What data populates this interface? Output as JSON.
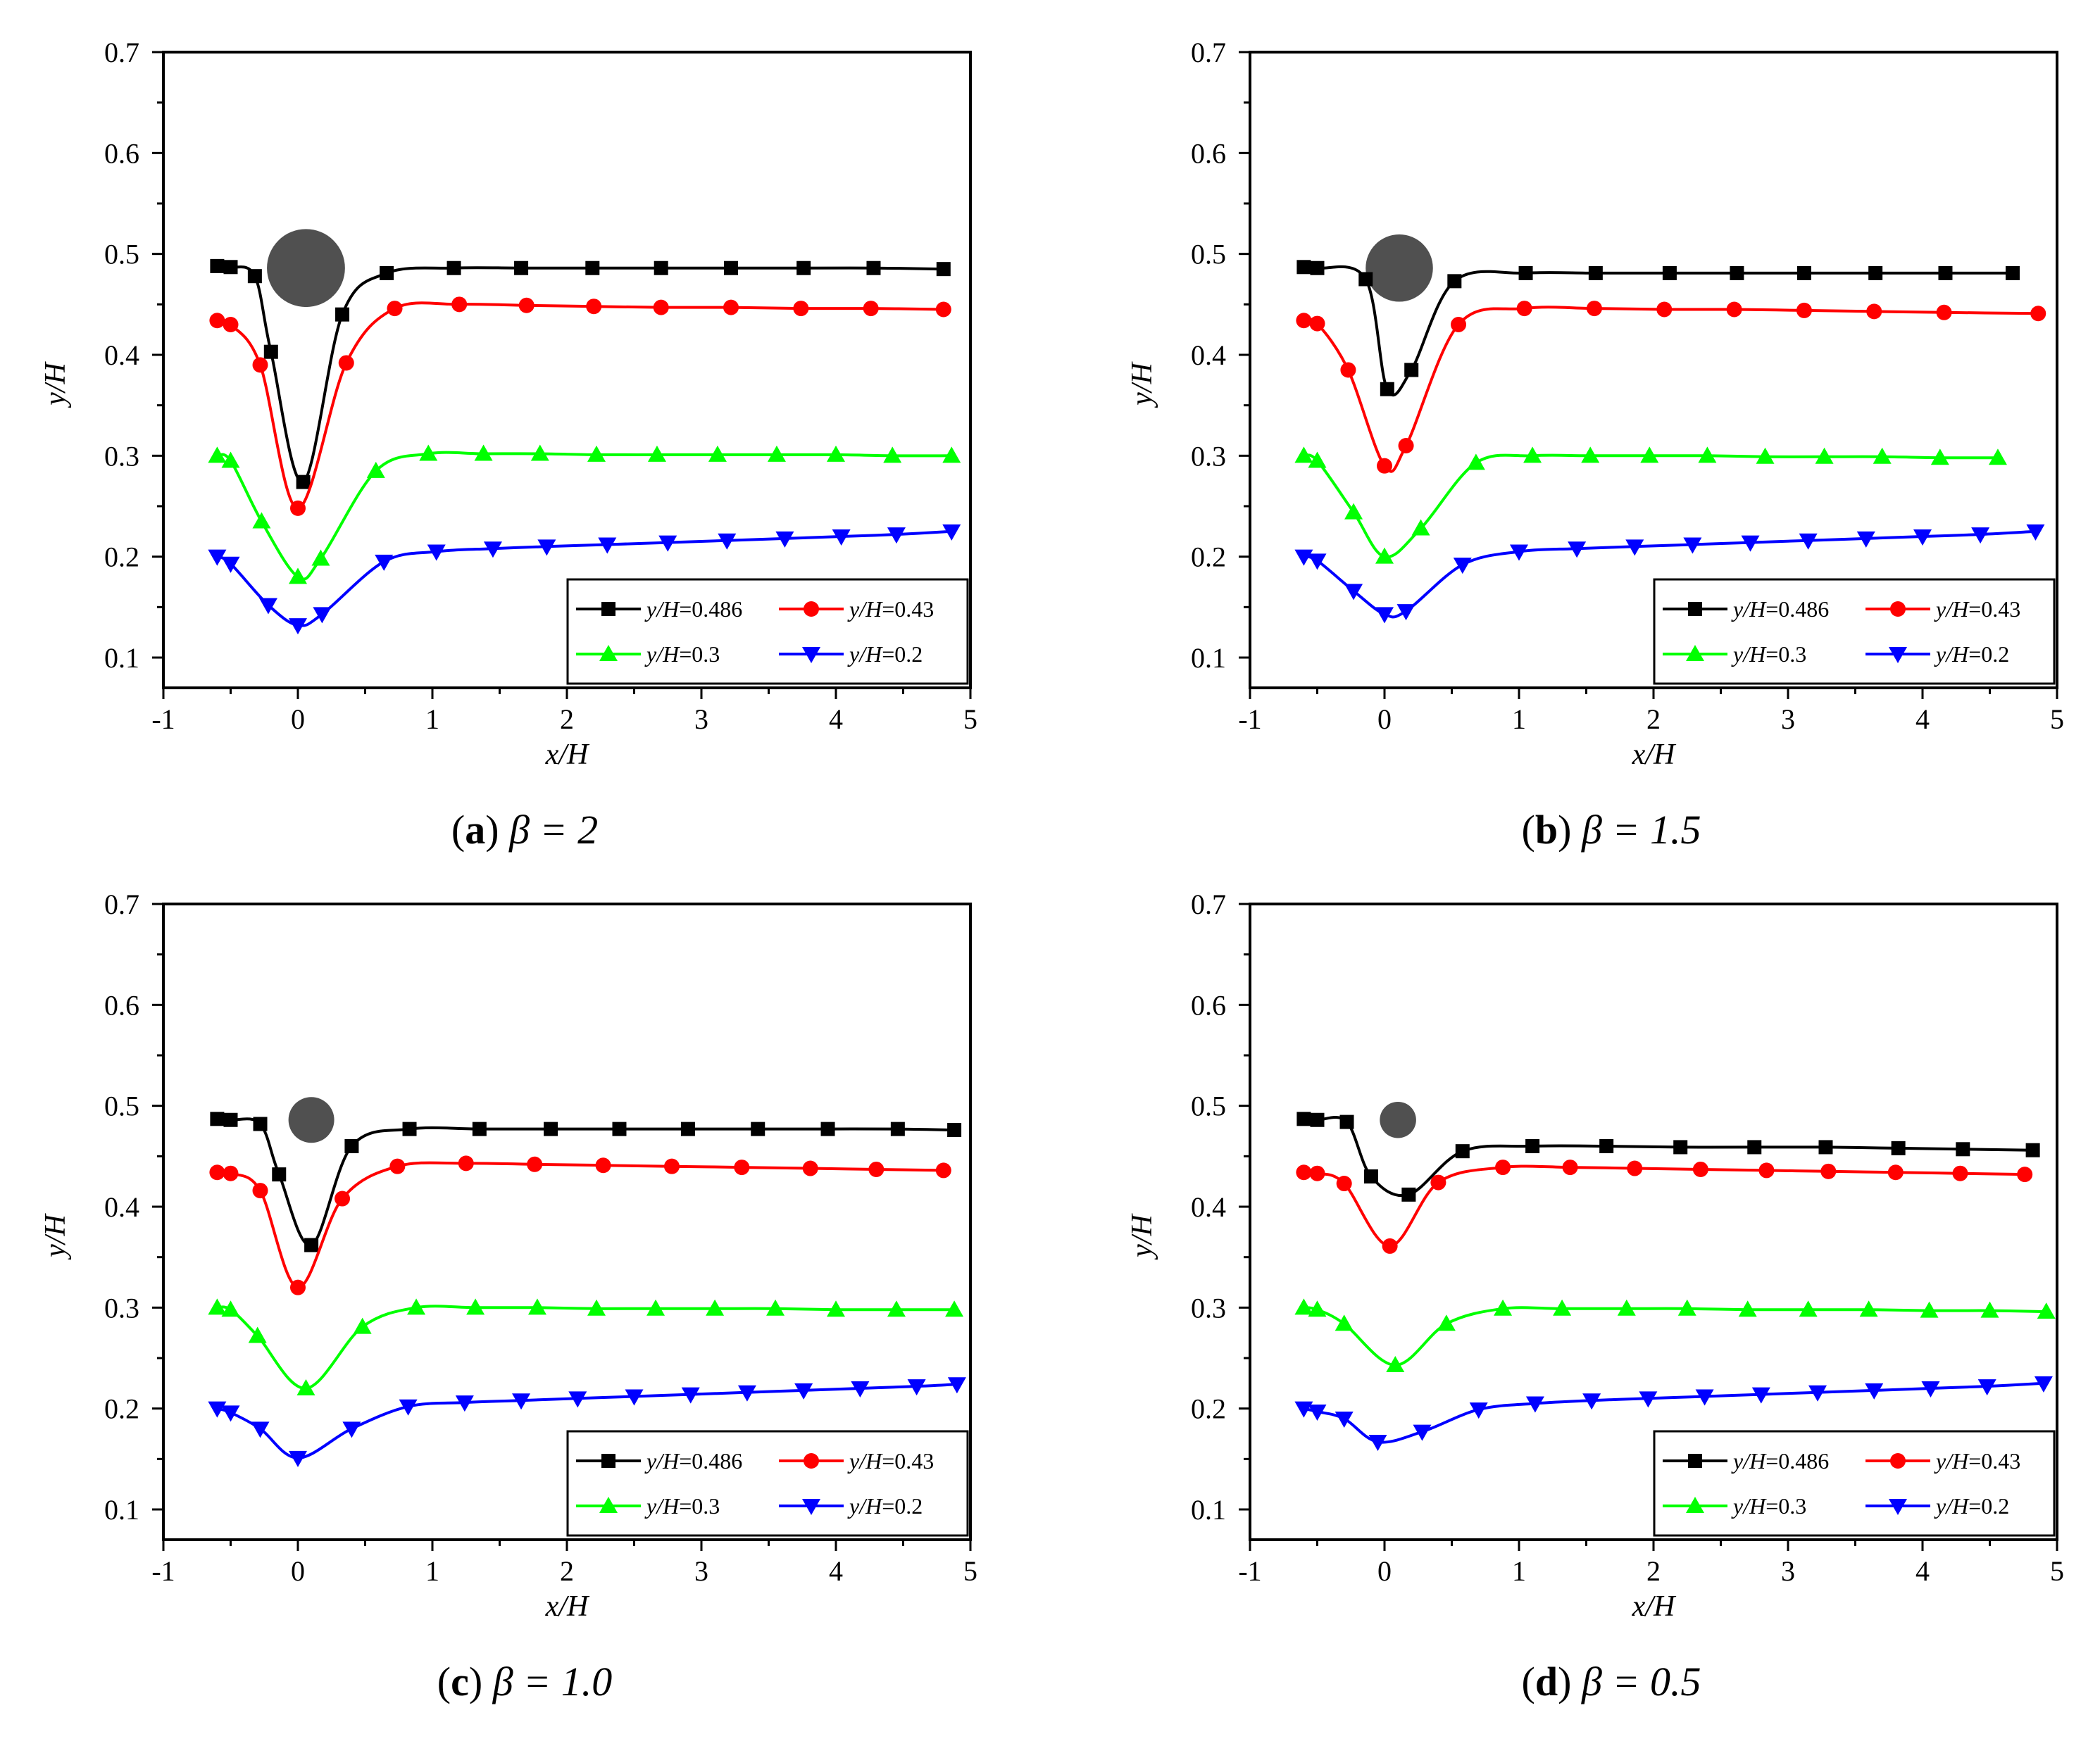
{
  "chart_data": [
    {
      "type": "line",
      "panel": "a",
      "caption": {
        "letter": "a",
        "text": "β = 2"
      },
      "xlabel": "x/H",
      "ylabel": "y/H",
      "xlim": [
        -1,
        5
      ],
      "ylim": [
        0.07,
        0.7
      ],
      "xticks": [
        "-1",
        "0",
        "1",
        "2",
        "3",
        "4",
        "5"
      ],
      "yticks": [
        "0.1",
        "0.2",
        "0.3",
        "0.4",
        "0.5",
        "0.6",
        "0.7"
      ],
      "cylinder": {
        "x": 0.06,
        "y": 0.486,
        "diameter_xH": 0.58
      },
      "series": [
        {
          "name": "y/H=0.486",
          "label_var": "y/H",
          "label_val": "=0.486",
          "color": "#000000",
          "marker": "square",
          "x": [
            -0.6,
            -0.5,
            -0.32,
            -0.2,
            0.04,
            0.33,
            0.66,
            1.16,
            1.66,
            2.19,
            2.7,
            3.22,
            3.76,
            4.28,
            4.8
          ],
          "y": [
            0.488,
            0.487,
            0.478,
            0.403,
            0.274,
            0.44,
            0.481,
            0.486,
            0.486,
            0.486,
            0.486,
            0.486,
            0.486,
            0.486,
            0.485
          ]
        },
        {
          "name": "y/H=0.43",
          "label_var": "y/H",
          "label_val": "=0.43",
          "color": "#ff0000",
          "marker": "circle",
          "x": [
            -0.6,
            -0.5,
            -0.28,
            0.0,
            0.36,
            0.72,
            1.2,
            1.7,
            2.2,
            2.7,
            3.22,
            3.74,
            4.26,
            4.8
          ],
          "y": [
            0.434,
            0.43,
            0.39,
            0.248,
            0.392,
            0.446,
            0.45,
            0.449,
            0.448,
            0.447,
            0.447,
            0.446,
            0.446,
            0.445
          ]
        },
        {
          "name": "y/H=0.3",
          "label_var": "y/H",
          "label_val": "=0.3",
          "color": "#00ff00",
          "marker": "triangle-up",
          "x": [
            -0.6,
            -0.5,
            -0.27,
            0.0,
            0.17,
            0.58,
            0.97,
            1.38,
            1.8,
            2.22,
            2.67,
            3.12,
            3.56,
            4.0,
            4.42,
            4.86
          ],
          "y": [
            0.3,
            0.295,
            0.235,
            0.18,
            0.198,
            0.285,
            0.302,
            0.302,
            0.302,
            0.301,
            0.301,
            0.301,
            0.301,
            0.301,
            0.3,
            0.3
          ]
        },
        {
          "name": "y/H=0.2",
          "label_var": "y/H",
          "label_val": "=0.2",
          "color": "#0000ff",
          "marker": "triangle-down",
          "x": [
            -0.6,
            -0.5,
            -0.22,
            0.0,
            0.18,
            0.64,
            1.03,
            1.45,
            1.85,
            2.3,
            2.75,
            3.19,
            3.62,
            4.04,
            4.45,
            4.86
          ],
          "y": [
            0.2,
            0.193,
            0.152,
            0.132,
            0.143,
            0.195,
            0.205,
            0.208,
            0.21,
            0.212,
            0.214,
            0.216,
            0.218,
            0.22,
            0.222,
            0.225
          ]
        }
      ]
    },
    {
      "type": "line",
      "panel": "b",
      "caption": {
        "letter": "b",
        "text": "β = 1.5"
      },
      "xlabel": "x/H",
      "ylabel": "y/H",
      "xlim": [
        -1,
        5
      ],
      "ylim": [
        0.07,
        0.7
      ],
      "xticks": [
        "-1",
        "0",
        "1",
        "2",
        "3",
        "4",
        "5"
      ],
      "yticks": [
        "0.1",
        "0.2",
        "0.3",
        "0.4",
        "0.5",
        "0.6",
        "0.7"
      ],
      "cylinder": {
        "x": 0.11,
        "y": 0.486,
        "diameter_xH": 0.5
      },
      "series": [
        {
          "name": "y/H=0.486",
          "label_var": "y/H",
          "label_val": "=0.486",
          "color": "#000000",
          "marker": "square",
          "x": [
            -0.6,
            -0.5,
            -0.14,
            0.02,
            0.2,
            0.52,
            1.05,
            1.57,
            2.12,
            2.62,
            3.12,
            3.65,
            4.17,
            4.67
          ],
          "y": [
            0.487,
            0.486,
            0.475,
            0.366,
            0.385,
            0.473,
            0.481,
            0.481,
            0.481,
            0.481,
            0.481,
            0.481,
            0.481,
            0.481
          ]
        },
        {
          "name": "y/H=0.43",
          "label_var": "y/H",
          "label_val": "=0.43",
          "color": "#ff0000",
          "marker": "circle",
          "x": [
            -0.6,
            -0.5,
            -0.27,
            0.0,
            0.16,
            0.55,
            1.04,
            1.56,
            2.08,
            2.6,
            3.12,
            3.64,
            4.16,
            4.86
          ],
          "y": [
            0.434,
            0.431,
            0.385,
            0.29,
            0.31,
            0.43,
            0.446,
            0.446,
            0.445,
            0.445,
            0.444,
            0.443,
            0.442,
            0.441
          ]
        },
        {
          "name": "y/H=0.3",
          "label_var": "y/H",
          "label_val": "=0.3",
          "color": "#00ff00",
          "marker": "triangle-up",
          "x": [
            -0.6,
            -0.5,
            -0.23,
            0.0,
            0.27,
            0.68,
            1.1,
            1.53,
            1.97,
            2.4,
            2.83,
            3.27,
            3.7,
            4.13,
            4.56
          ],
          "y": [
            0.3,
            0.295,
            0.244,
            0.2,
            0.228,
            0.293,
            0.3,
            0.3,
            0.3,
            0.3,
            0.299,
            0.299,
            0.299,
            0.298,
            0.298
          ]
        },
        {
          "name": "y/H=0.2",
          "label_var": "y/H",
          "label_val": "=0.2",
          "color": "#0000ff",
          "marker": "triangle-down",
          "x": [
            -0.6,
            -0.5,
            -0.23,
            0.0,
            0.16,
            0.58,
            1.0,
            1.43,
            1.86,
            2.29,
            2.72,
            3.15,
            3.58,
            4.0,
            4.43,
            4.84
          ],
          "y": [
            0.2,
            0.196,
            0.166,
            0.143,
            0.146,
            0.192,
            0.205,
            0.208,
            0.21,
            0.212,
            0.214,
            0.216,
            0.218,
            0.22,
            0.222,
            0.225
          ]
        }
      ]
    },
    {
      "type": "line",
      "panel": "c",
      "caption": {
        "letter": "c",
        "text": "β = 1.0"
      },
      "xlabel": "x/H",
      "ylabel": "y/H",
      "xlim": [
        -1,
        5
      ],
      "ylim": [
        0.07,
        0.7
      ],
      "xticks": [
        "-1",
        "0",
        "1",
        "2",
        "3",
        "4",
        "5"
      ],
      "yticks": [
        "0.1",
        "0.2",
        "0.3",
        "0.4",
        "0.5",
        "0.6",
        "0.7"
      ],
      "cylinder": {
        "x": 0.1,
        "y": 0.486,
        "diameter_xH": 0.34
      },
      "series": [
        {
          "name": "y/H=0.486",
          "label_var": "y/H",
          "label_val": "=0.486",
          "color": "#000000",
          "marker": "square",
          "x": [
            -0.6,
            -0.5,
            -0.28,
            -0.14,
            0.1,
            0.4,
            0.83,
            1.35,
            1.88,
            2.39,
            2.9,
            3.42,
            3.94,
            4.46,
            4.88
          ],
          "y": [
            0.487,
            0.486,
            0.482,
            0.432,
            0.362,
            0.46,
            0.477,
            0.477,
            0.477,
            0.477,
            0.477,
            0.477,
            0.477,
            0.477,
            0.476
          ]
        },
        {
          "name": "y/H=0.43",
          "label_var": "y/H",
          "label_val": "=0.43",
          "color": "#ff0000",
          "marker": "circle",
          "x": [
            -0.6,
            -0.5,
            -0.28,
            0.0,
            0.33,
            0.74,
            1.25,
            1.76,
            2.27,
            2.78,
            3.3,
            3.81,
            4.3,
            4.8
          ],
          "y": [
            0.434,
            0.433,
            0.416,
            0.32,
            0.408,
            0.44,
            0.443,
            0.442,
            0.441,
            0.44,
            0.439,
            0.438,
            0.437,
            0.436
          ]
        },
        {
          "name": "y/H=0.3",
          "label_var": "y/H",
          "label_val": "=0.3",
          "color": "#00ff00",
          "marker": "triangle-up",
          "x": [
            -0.6,
            -0.5,
            -0.3,
            0.06,
            0.48,
            0.88,
            1.32,
            1.78,
            2.22,
            2.66,
            3.1,
            3.55,
            4.0,
            4.45,
            4.88
          ],
          "y": [
            0.3,
            0.298,
            0.272,
            0.22,
            0.281,
            0.3,
            0.3,
            0.3,
            0.299,
            0.299,
            0.299,
            0.299,
            0.298,
            0.298,
            0.298
          ]
        },
        {
          "name": "y/H=0.2",
          "label_var": "y/H",
          "label_val": "=0.2",
          "color": "#0000ff",
          "marker": "triangle-down",
          "x": [
            -0.6,
            -0.5,
            -0.28,
            0.0,
            0.4,
            0.82,
            1.24,
            1.66,
            2.08,
            2.5,
            2.92,
            3.34,
            3.76,
            4.18,
            4.6,
            4.9
          ],
          "y": [
            0.2,
            0.196,
            0.18,
            0.151,
            0.18,
            0.202,
            0.206,
            0.208,
            0.21,
            0.212,
            0.214,
            0.216,
            0.218,
            0.22,
            0.222,
            0.224
          ]
        }
      ]
    },
    {
      "type": "line",
      "panel": "d",
      "caption": {
        "letter": "d",
        "text": "β = 0.5"
      },
      "xlabel": "x/H",
      "ylabel": "y/H",
      "xlim": [
        -1,
        5
      ],
      "ylim": [
        0.07,
        0.7
      ],
      "xticks": [
        "-1",
        "0",
        "1",
        "2",
        "3",
        "4",
        "5"
      ],
      "yticks": [
        "0.1",
        "0.2",
        "0.3",
        "0.4",
        "0.5",
        "0.6",
        "0.7"
      ],
      "cylinder": {
        "x": 0.1,
        "y": 0.486,
        "diameter_xH": 0.27
      },
      "series": [
        {
          "name": "y/H=0.486",
          "label_var": "y/H",
          "label_val": "=0.486",
          "color": "#000000",
          "marker": "square",
          "x": [
            -0.6,
            -0.5,
            -0.28,
            -0.1,
            0.18,
            0.58,
            1.1,
            1.65,
            2.2,
            2.75,
            3.28,
            3.82,
            4.3,
            4.82
          ],
          "y": [
            0.487,
            0.486,
            0.484,
            0.43,
            0.412,
            0.455,
            0.46,
            0.46,
            0.459,
            0.459,
            0.459,
            0.458,
            0.457,
            0.456
          ]
        },
        {
          "name": "y/H=0.43",
          "label_var": "y/H",
          "label_val": "=0.43",
          "color": "#ff0000",
          "marker": "circle",
          "x": [
            -0.6,
            -0.5,
            -0.3,
            0.04,
            0.4,
            0.88,
            1.38,
            1.86,
            2.35,
            2.84,
            3.3,
            3.8,
            4.28,
            4.76
          ],
          "y": [
            0.434,
            0.433,
            0.423,
            0.361,
            0.424,
            0.439,
            0.439,
            0.438,
            0.437,
            0.436,
            0.435,
            0.434,
            0.433,
            0.432
          ]
        },
        {
          "name": "y/H=0.3",
          "label_var": "y/H",
          "label_val": "=0.3",
          "color": "#00ff00",
          "marker": "triangle-up",
          "x": [
            -0.6,
            -0.5,
            -0.3,
            0.08,
            0.46,
            0.88,
            1.32,
            1.8,
            2.25,
            2.7,
            3.15,
            3.6,
            4.05,
            4.5,
            4.92
          ],
          "y": [
            0.3,
            0.298,
            0.284,
            0.243,
            0.284,
            0.299,
            0.299,
            0.299,
            0.299,
            0.298,
            0.298,
            0.298,
            0.297,
            0.297,
            0.296
          ]
        },
        {
          "name": "y/H=0.2",
          "label_var": "y/H",
          "label_val": "=0.2",
          "color": "#0000ff",
          "marker": "triangle-down",
          "x": [
            -0.6,
            -0.5,
            -0.3,
            -0.05,
            0.28,
            0.7,
            1.12,
            1.54,
            1.96,
            2.38,
            2.8,
            3.22,
            3.64,
            4.06,
            4.48,
            4.9
          ],
          "y": [
            0.2,
            0.197,
            0.19,
            0.167,
            0.177,
            0.199,
            0.205,
            0.208,
            0.21,
            0.212,
            0.214,
            0.216,
            0.218,
            0.22,
            0.222,
            0.225
          ]
        }
      ]
    }
  ]
}
